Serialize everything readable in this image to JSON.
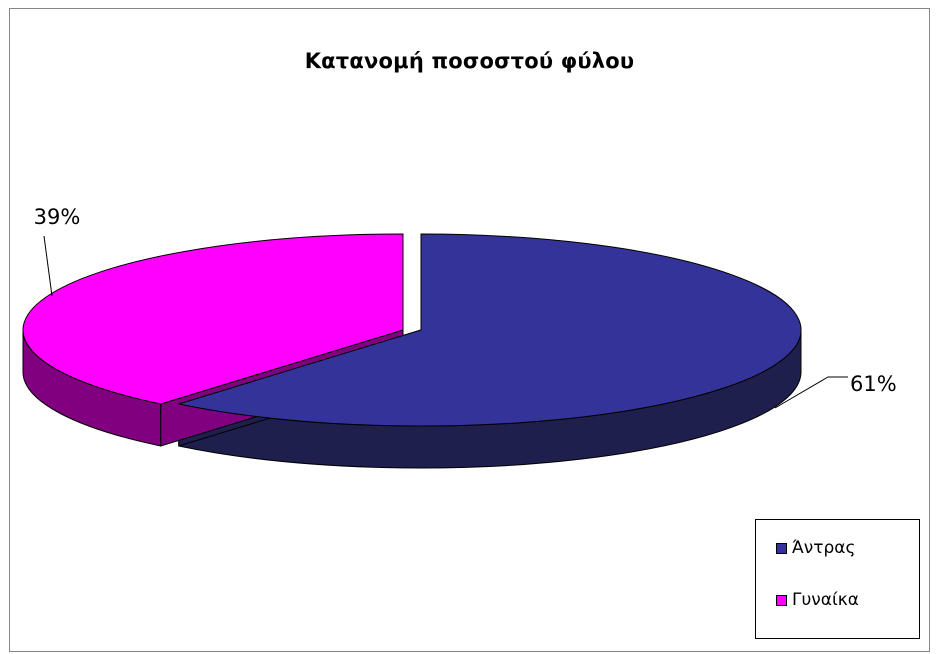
{
  "chart_data": {
    "type": "pie",
    "title": "Κατανομή ποσοστού φύλου",
    "categories": [
      "Άντρας",
      "Γυναίκα"
    ],
    "values": [
      61,
      39
    ],
    "value_labels": [
      "61%",
      "39%"
    ],
    "colors": [
      "#333399",
      "#FF00FF"
    ],
    "side_colors": [
      "#1F1F4D",
      "#800080"
    ],
    "exploded": true,
    "three_d": true,
    "legend_position": "bottom-right"
  }
}
